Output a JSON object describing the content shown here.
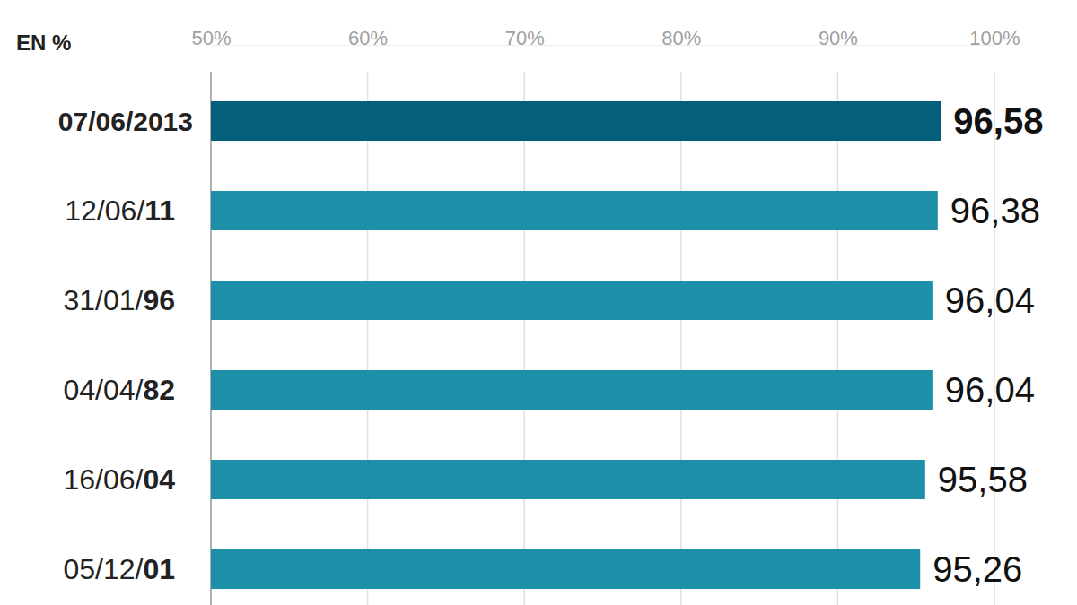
{
  "chart_data": {
    "type": "bar",
    "orientation": "horizontal",
    "title": "EN %",
    "categories": [
      "07/06/2013",
      "12/06/11",
      "31/01/96",
      "04/04/82",
      "16/06/04",
      "05/12/01"
    ],
    "values": [
      96.58,
      96.38,
      96.04,
      96.04,
      95.58,
      95.26
    ],
    "value_labels": [
      "96,58",
      "96,38",
      "96,04",
      "96,04",
      "95,58",
      "95,26"
    ],
    "colors": [
      "#04607a",
      "#1e8fa8",
      "#1e8fa8",
      "#1e8fa8",
      "#1e8fa8",
      "#1e8fa8"
    ],
    "xlim": [
      50,
      100
    ],
    "xticks": [
      {
        "value": 50,
        "label": "50%"
      },
      {
        "value": 60,
        "label": "60%"
      },
      {
        "value": 70,
        "label": "70%"
      },
      {
        "value": 80,
        "label": "80%"
      },
      {
        "value": 90,
        "label": "90%"
      },
      {
        "value": 100,
        "label": "100%"
      }
    ],
    "grid": true,
    "data_labels": true
  }
}
